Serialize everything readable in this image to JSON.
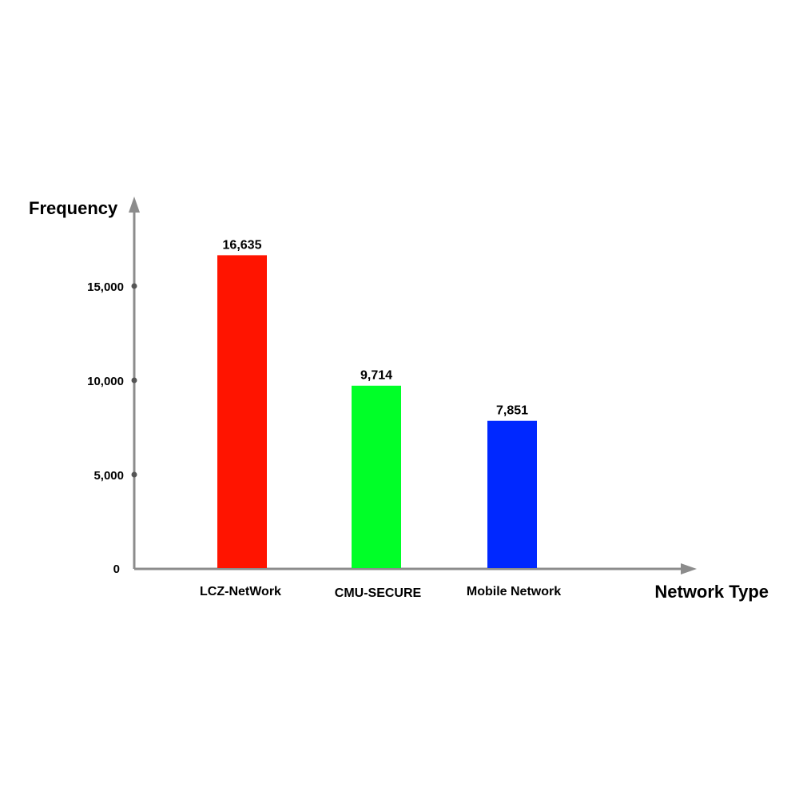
{
  "chart_data": {
    "type": "bar",
    "title": "",
    "xlabel": "Network Type",
    "ylabel": "Frequency",
    "categories": [
      "LCZ-NetWork",
      "CMU-SECURE",
      "Mobile Network"
    ],
    "values": [
      16635,
      9714,
      7851
    ],
    "data_labels": [
      "16,635",
      "9,714",
      "7,851"
    ],
    "colors": [
      "#ff1400",
      "#00ff28",
      "#0028ff"
    ],
    "yticks": [
      {
        "value": 0,
        "label": "0"
      },
      {
        "value": 5000,
        "label": "5,000"
      },
      {
        "value": 10000,
        "label": "10,000"
      },
      {
        "value": 15000,
        "label": "15,000"
      }
    ],
    "ylim": [
      0,
      20000
    ],
    "grid": false,
    "legend": "none",
    "axis_color": "#8c8c8c"
  }
}
